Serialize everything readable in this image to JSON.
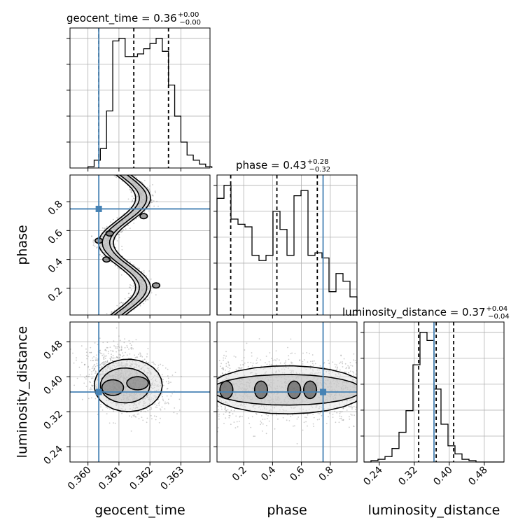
{
  "chart_data": {
    "type": "corner",
    "parameters": [
      "geocent_time",
      "phase",
      "luminosity_distance"
    ],
    "truths": {
      "geocent_time": 0.36035,
      "phase": 0.75,
      "luminosity_distance": 0.365
    },
    "titles": [
      {
        "param": "geocent_time",
        "text": "geocent_time = 0.36",
        "sup": "+0.00",
        "sub": "−0.00"
      },
      {
        "param": "phase",
        "text": "phase = 0.43",
        "sup": "+0.28",
        "sub": "−0.32"
      },
      {
        "param": "luminosity_distance",
        "text": "luminosity_distance = 0.37",
        "sup": "+0.04",
        "sub": "−0.04"
      }
    ],
    "axis_labels": {
      "x": [
        "geocent_time",
        "phase",
        "luminosity_distance"
      ],
      "y": [
        "phase",
        "luminosity_distance"
      ]
    },
    "ranges": {
      "geocent_time": [
        0.35942,
        0.36394
      ],
      "phase": [
        0.015,
        0.985
      ],
      "luminosity_distance": [
        0.205,
        0.525
      ]
    },
    "ticks": {
      "geocent_time": {
        "values": [
          0.36,
          0.361,
          0.362,
          0.363
        ],
        "labels": [
          "0.360",
          "0.361",
          "0.362",
          "0.363"
        ]
      },
      "phase": {
        "values": [
          0.2,
          0.4,
          0.6,
          0.8
        ],
        "labels": [
          "0.2",
          "0.4",
          "0.6",
          "0.8"
        ]
      },
      "luminosity_distance": {
        "values": [
          0.24,
          0.32,
          0.4,
          0.48
        ],
        "labels": [
          "0.24",
          "0.32",
          "0.40",
          "0.48"
        ]
      }
    },
    "histograms": {
      "geocent_time": {
        "edges_start": 0.36,
        "bin_width": 0.0002,
        "n_bins": 20,
        "counts": [
          0.5,
          3,
          7.5,
          22,
          49,
          50,
          43,
          43,
          44,
          46,
          48,
          50,
          45,
          32,
          20,
          10,
          5,
          3,
          1.5,
          0.5
        ],
        "quantiles": [
          0.36035,
          0.36148,
          0.3626
        ]
      },
      "phase": {
        "edges_start": 0.015,
        "bin_width": 0.0485,
        "n_bins": 20,
        "counts": [
          45,
          50,
          37,
          35,
          34,
          23,
          21,
          23,
          40,
          33,
          23,
          46,
          48,
          23,
          24,
          22,
          9,
          16,
          13,
          7
        ],
        "quantiles": [
          0.11,
          0.43,
          0.71
        ]
      },
      "luminosity_distance": {
        "edges_start": 0.205,
        "bin_width": 0.016,
        "n_bins": 20,
        "counts": [
          0,
          0.5,
          1,
          2,
          5,
          11,
          19,
          36,
          48,
          45,
          27,
          14,
          6,
          3,
          1,
          0.5,
          0,
          0,
          0,
          0
        ],
        "quantiles": [
          0.33,
          0.37,
          0.41
        ]
      }
    },
    "scatter": {
      "phase_vs_geocent_time": {
        "x": "geocent_time",
        "y": "phase",
        "density": "sinusoidal-band"
      },
      "luminosity_distance_vs_geocent_time": {
        "x": "geocent_time",
        "y": "luminosity_distance",
        "density": "tilted-ellipse"
      },
      "luminosity_distance_vs_phase": {
        "x": "phase",
        "y": "luminosity_distance",
        "density": "horizontal-band"
      }
    },
    "colors": {
      "hist": "#000000",
      "truth": "#4682b4",
      "scatter": "#8c8c8c",
      "grid": "#b0b0b0"
    }
  }
}
